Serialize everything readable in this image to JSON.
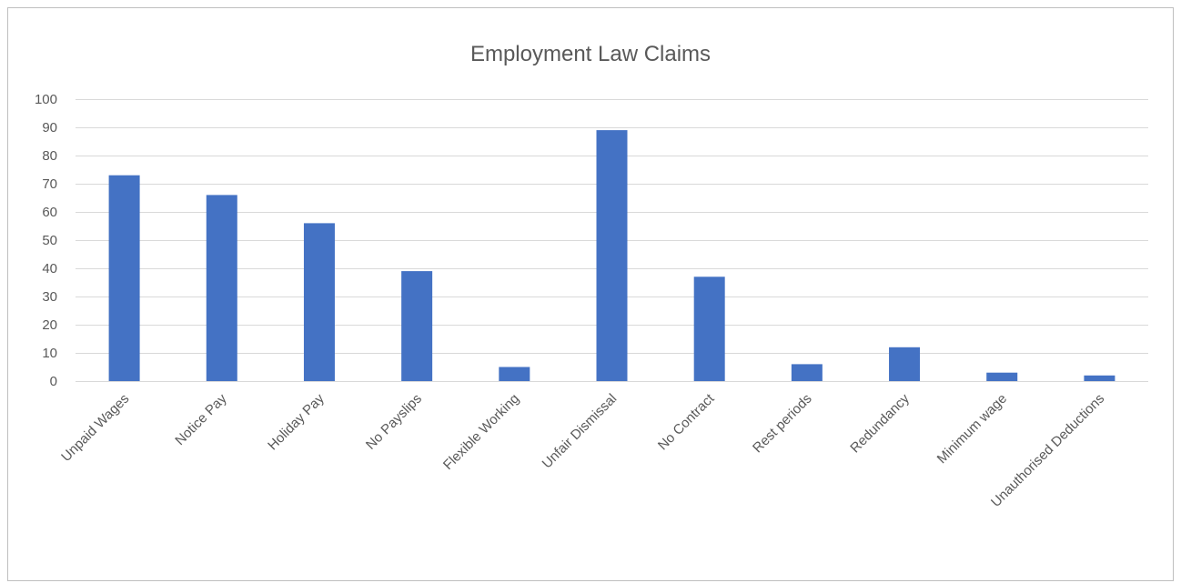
{
  "chart_data": {
    "type": "bar",
    "title": "Employment Law Claims",
    "xlabel": "",
    "ylabel": "",
    "categories": [
      "Unpaid Wages",
      "Notice Pay",
      "Holiday Pay",
      "No Payslips",
      "Flexible Working",
      "Unfair Dismissal",
      "No Contract",
      "Rest periods",
      "Redundancy",
      "Minimum wage",
      "Unauthorised Deductions"
    ],
    "values": [
      73,
      66,
      56,
      39,
      5,
      89,
      37,
      6,
      12,
      3,
      2
    ],
    "ylim": [
      0,
      100
    ],
    "yticks": [
      0,
      10,
      20,
      30,
      40,
      50,
      60,
      70,
      80,
      90,
      100
    ],
    "grid": true,
    "legend": "none",
    "colors": {
      "bar": "#4472C4",
      "grid": "#d9d9d9",
      "axis": "#d9d9d9",
      "text": "#595959"
    }
  }
}
